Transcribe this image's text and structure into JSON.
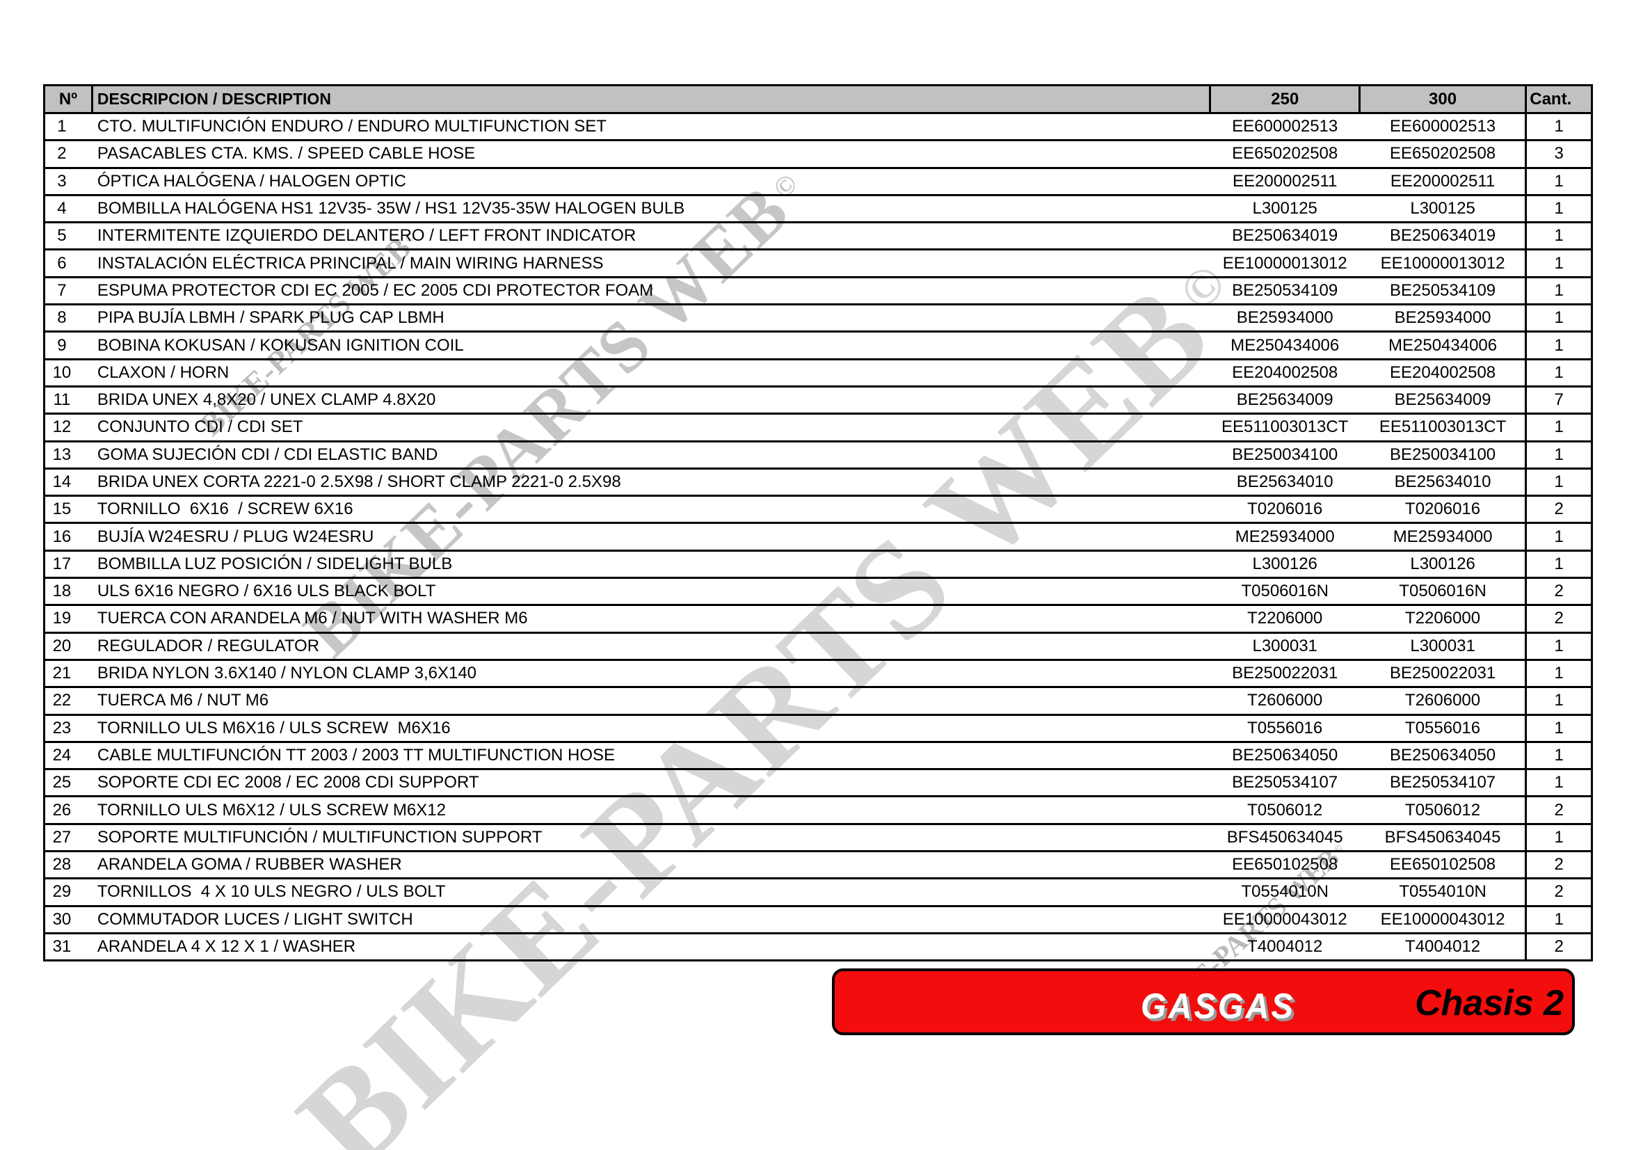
{
  "table": {
    "headers": {
      "num": "Nº",
      "description": "DESCRIPCION / DESCRIPTION",
      "col250": "250",
      "col300": "300",
      "qty": "Cant."
    },
    "header_bg": "#c1c1c1",
    "rows": [
      {
        "n": "1",
        "desc": "CTO. MULTIFUNCIÓN ENDURO / ENDURO MULTIFUNCTION SET",
        "p250": "EE600002513",
        "p300": "EE600002513",
        "qty": "1"
      },
      {
        "n": "2",
        "desc": "PASACABLES CTA. KMS. / SPEED CABLE HOSE",
        "p250": "EE650202508",
        "p300": "EE650202508",
        "qty": "3"
      },
      {
        "n": "3",
        "desc": "ÓPTICA HALÓGENA / HALOGEN OPTIC",
        "p250": "EE200002511",
        "p300": "EE200002511",
        "qty": "1"
      },
      {
        "n": "4",
        "desc": "BOMBILLA HALÓGENA HS1 12V35- 35W / HS1 12V35-35W HALOGEN BULB",
        "p250": "L300125",
        "p300": "L300125",
        "qty": "1"
      },
      {
        "n": "5",
        "desc": "INTERMITENTE IZQUIERDO DELANTERO / LEFT FRONT INDICATOR",
        "p250": "BE250634019",
        "p300": "BE250634019",
        "qty": "1"
      },
      {
        "n": "6",
        "desc": "INSTALACIÓN ELÉCTRICA PRINCIPAL / MAIN WIRING HARNESS",
        "p250": "EE10000013012",
        "p300": "EE10000013012",
        "qty": "1"
      },
      {
        "n": "7",
        "desc": "ESPUMA PROTECTOR CDI EC 2005 / EC 2005 CDI PROTECTOR FOAM",
        "p250": "BE250534109",
        "p300": "BE250534109",
        "qty": "1"
      },
      {
        "n": "8",
        "desc": "PIPA BUJÍA LBMH / SPARK PLUG CAP LBMH",
        "p250": "BE25934000",
        "p300": "BE25934000",
        "qty": "1"
      },
      {
        "n": "9",
        "desc": "BOBINA KOKUSAN / KOKUSAN IGNITION COIL",
        "p250": "ME250434006",
        "p300": "ME250434006",
        "qty": "1"
      },
      {
        "n": "10",
        "desc": "CLAXON / HORN",
        "p250": "EE204002508",
        "p300": "EE204002508",
        "qty": "1"
      },
      {
        "n": "11",
        "desc": "BRIDA UNEX 4,8X20 / UNEX CLAMP 4.8X20",
        "p250": "BE25634009",
        "p300": "BE25634009",
        "qty": "7"
      },
      {
        "n": "12",
        "desc": "CONJUNTO CDI / CDI SET",
        "p250": "EE511003013CT",
        "p300": "EE511003013CT",
        "qty": "1"
      },
      {
        "n": "13",
        "desc": "GOMA SUJECIÓN CDI / CDI ELASTIC BAND",
        "p250": "BE250034100",
        "p300": "BE250034100",
        "qty": "1"
      },
      {
        "n": "14",
        "desc": "BRIDA UNEX CORTA 2221-0 2.5X98 / SHORT CLAMP 2221-0 2.5X98",
        "p250": "BE25634010",
        "p300": "BE25634010",
        "qty": "1"
      },
      {
        "n": "15",
        "desc": "TORNILLO  6X16  / SCREW 6X16",
        "p250": "T0206016",
        "p300": "T0206016",
        "qty": "2"
      },
      {
        "n": "16",
        "desc": "BUJÍA W24ESRU / PLUG W24ESRU",
        "p250": "ME25934000",
        "p300": "ME25934000",
        "qty": "1"
      },
      {
        "n": "17",
        "desc": "BOMBILLA LUZ POSICIÓN / SIDELIGHT BULB",
        "p250": "L300126",
        "p300": "L300126",
        "qty": "1"
      },
      {
        "n": "18",
        "desc": "ULS 6X16 NEGRO / 6X16 ULS BLACK BOLT",
        "p250": "T0506016N",
        "p300": "T0506016N",
        "qty": "2"
      },
      {
        "n": "19",
        "desc": "TUERCA CON ARANDELA M6 / NUT WITH WASHER M6",
        "p250": "T2206000",
        "p300": "T2206000",
        "qty": "2"
      },
      {
        "n": "20",
        "desc": "REGULADOR / REGULATOR",
        "p250": "L300031",
        "p300": "L300031",
        "qty": "1"
      },
      {
        "n": "21",
        "desc": "BRIDA NYLON 3.6X140 / NYLON CLAMP 3,6X140",
        "p250": "BE250022031",
        "p300": "BE250022031",
        "qty": "1"
      },
      {
        "n": "22",
        "desc": "TUERCA M6 / NUT M6",
        "p250": "T2606000",
        "p300": "T2606000",
        "qty": "1"
      },
      {
        "n": "23",
        "desc": "TORNILLO ULS M6X16 / ULS SCREW  M6X16",
        "p250": "T0556016",
        "p300": "T0556016",
        "qty": "1"
      },
      {
        "n": "24",
        "desc": "CABLE MULTIFUNCIÓN TT 2003 / 2003 TT MULTIFUNCTION HOSE",
        "p250": "BE250634050",
        "p300": "BE250634050",
        "qty": "1"
      },
      {
        "n": "25",
        "desc": "SOPORTE CDI EC 2008 / EC 2008 CDI SUPPORT",
        "p250": "BE250534107",
        "p300": "BE250534107",
        "qty": "1"
      },
      {
        "n": "26",
        "desc": "TORNILLO ULS M6X12 / ULS SCREW M6X12",
        "p250": "T0506012",
        "p300": "T0506012",
        "qty": "2"
      },
      {
        "n": "27",
        "desc": "SOPORTE MULTIFUNCIÓN / MULTIFUNCTION SUPPORT",
        "p250": "BFS450634045",
        "p300": "BFS450634045",
        "qty": "1"
      },
      {
        "n": "28",
        "desc": "ARANDELA GOMA / RUBBER WASHER",
        "p250": "EE650102508",
        "p300": "EE650102508",
        "qty": "2"
      },
      {
        "n": "29",
        "desc": "TORNILLOS  4 X 10 ULS NEGRO / ULS BOLT",
        "p250": "T0554010N",
        "p300": "T0554010N",
        "qty": "2"
      },
      {
        "n": "30",
        "desc": "COMMUTADOR LUCES / LIGHT SWITCH",
        "p250": "EE10000043012",
        "p300": "EE10000043012",
        "qty": "1"
      },
      {
        "n": "31",
        "desc": "ARANDELA 4 X 12 X 1 / WASHER",
        "p250": "T4004012",
        "p300": "T4004012",
        "qty": "2"
      }
    ]
  },
  "watermarks": [
    {
      "text": "BIKE-PARTS WEB",
      "copyright": "©"
    },
    {
      "text": "BIKE-PARTS WEB",
      "copyright": "©"
    },
    {
      "text": "BIKE-PARTS WEB",
      "copyright": "©"
    },
    {
      "text": "BIKE-PARTS WEB",
      "copyright": "©"
    }
  ],
  "banner": {
    "logo": "GASGAS",
    "label": "Chasis 2",
    "bg": "#f30d0c",
    "logo_color": "#ffffff",
    "label_color": "#000000"
  },
  "colors": {
    "watermark_gray": "#c6c6c6",
    "table_border": "#000000"
  }
}
